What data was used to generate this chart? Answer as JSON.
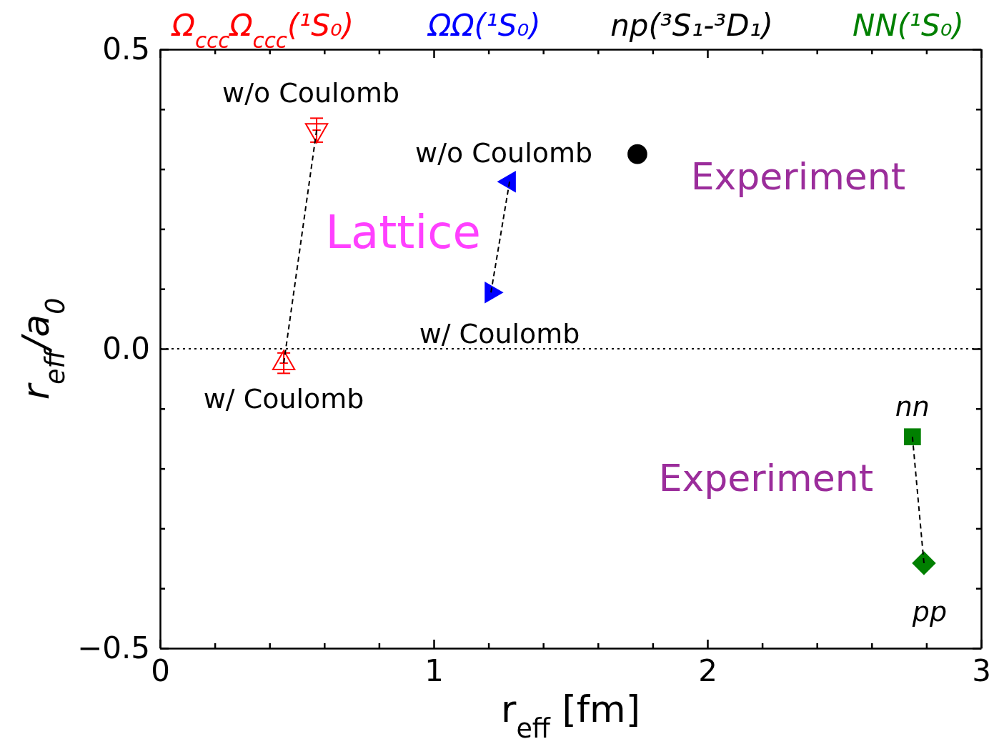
{
  "chart_data": {
    "type": "scatter",
    "xlabel": "r$_{eff}$ [fm]",
    "ylabel": "r$_{eff}$/a$_{0}$",
    "xlim": [
      0,
      3
    ],
    "xticks": [
      0,
      {
        "value": 0.2,
        "label": null
      },
      {
        "value": 0.4,
        "label": null
      },
      {
        "value": 0.6,
        "label": null
      },
      {
        "value": 0.8,
        "label": null
      },
      1,
      {
        "value": 1.2,
        "label": null
      },
      {
        "value": 1.4,
        "label": null
      },
      {
        "value": 1.6,
        "label": null
      },
      {
        "value": 1.8,
        "label": null
      },
      2,
      {
        "value": 2.2,
        "label": null
      },
      {
        "value": 2.4,
        "label": null
      },
      {
        "value": 2.6,
        "label": null
      },
      {
        "value": 2.8,
        "label": null
      },
      3
    ],
    "ylim": [
      -0.5,
      0.5
    ],
    "yticks": [
      {
        "value": -0.5,
        "label": "−0.5"
      },
      {
        "value": -0.4,
        "label": null
      },
      {
        "value": -0.3,
        "label": null
      },
      {
        "value": -0.2,
        "label": null
      },
      {
        "value": -0.1,
        "label": null
      },
      {
        "value": 0,
        "label": "0.0"
      },
      {
        "value": 0.1,
        "label": null
      },
      {
        "value": 0.2,
        "label": null
      },
      {
        "value": 0.3,
        "label": null
      },
      {
        "value": 0.4,
        "label": null
      },
      0.5
    ],
    "grid": false,
    "legend": "top",
    "ref_lines": [
      {
        "axis": "y",
        "value": 0,
        "color": "#000000",
        "line_style": "dotted"
      }
    ],
    "series": [
      {
        "type": "line",
        "color": "#000000",
        "line_style": "dashed",
        "marker": "none",
        "x": [
          0.572,
          0.452
        ],
        "values": [
          0.365,
          -0.024
        ]
      },
      {
        "type": "line",
        "color": "#000000",
        "line_style": "dashed",
        "marker": "none",
        "x": [
          1.277,
          1.209
        ],
        "values": [
          0.279,
          0.094
        ]
      },
      {
        "type": "line",
        "color": "#000000",
        "line_style": "dashed",
        "marker": "none",
        "x": [
          2.749,
          2.791
        ],
        "values": [
          -0.147,
          -0.358
        ]
      },
      {
        "name": "Ω$_{ccc}$Ω$_{ccc}$(¹S₀)",
        "color": "#ff0000",
        "marker": "triangle",
        "x": [
          0.572,
          0.452
        ],
        "values": [
          0.365,
          -0.024
        ],
        "errors": [
          0.02,
          0.017
        ],
        "xerrors": [
          0.015,
          0.015
        ]
      },
      {
        "name": "ΩΩ(¹S₀)",
        "color": "#0000ff",
        "marker": "triangle",
        "x": [
          1.277,
          1.209
        ],
        "values": [
          0.279,
          0.094
        ]
      },
      {
        "name": "np(³S₁-³D₁)",
        "color": "#000000",
        "marker": "circle",
        "x": [
          1.744
        ],
        "values": [
          0.325
        ]
      },
      {
        "name": "NN(¹S₀)",
        "color": "#008000",
        "marker": "square",
        "x": [
          2.749
        ],
        "values": [
          -0.147
        ]
      },
      {
        "color": "#008000",
        "marker": "diamond",
        "x": [
          2.791
        ],
        "values": [
          -0.358
        ]
      }
    ],
    "annotations": [
      {
        "text": "w/o Coulomb",
        "x": 0.572,
        "y": 0.365
      },
      {
        "text": "w/ Coulomb",
        "x": 0.452,
        "y": -0.024
      },
      {
        "text": "w/o Coulomb",
        "x": 1.277,
        "y": 0.279
      },
      {
        "text": "w/ Coulomb",
        "x": 1.209,
        "y": 0.094
      },
      "Lattice",
      {
        "text": "Experiment",
        "x": 1.744,
        "y": 0.325
      },
      {
        "text": "Experiment",
        "x": 2.749,
        "y": -0.147
      },
      {
        "text": "nn",
        "x": 2.749,
        "y": -0.147
      },
      {
        "text": "pp",
        "x": 2.791,
        "y": -0.358
      }
    ]
  }
}
